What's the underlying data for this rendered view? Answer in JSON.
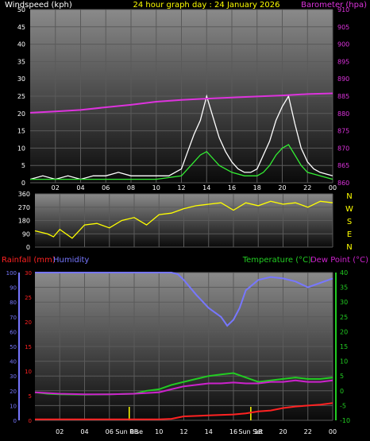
{
  "header": {
    "left_label": "Windspeed (kph)",
    "center_label": "24 hour graph day : 24 January 2026",
    "right_label": "Barometer (hpa)"
  },
  "colors": {
    "windspeed": "#ffffff",
    "wind_avg": "#33ee33",
    "barometer": "#dd33dd",
    "direction": "#ffff00",
    "rainfall": "#ff2222",
    "humidity": "#7777ff",
    "temperature": "#22cc22",
    "dewpoint": "#cc22cc",
    "title": "#ffff00"
  },
  "chart_data": [
    {
      "type": "line",
      "name": "wind-barometer",
      "x_ticks": [
        "02",
        "04",
        "06",
        "08",
        "10",
        "12",
        "14",
        "16",
        "18",
        "20",
        "22",
        "00"
      ],
      "y_left": {
        "label": "Windspeed (kph)",
        "range": [
          0,
          50
        ],
        "ticks": [
          0,
          5,
          10,
          15,
          20,
          25,
          30,
          35,
          40,
          45,
          50
        ]
      },
      "y_right": {
        "label": "Barometer (hpa)",
        "range": [
          860,
          910
        ],
        "ticks": [
          860,
          865,
          870,
          875,
          880,
          885,
          890,
          895,
          900,
          905,
          910
        ]
      },
      "series": [
        {
          "name": "Windspeed (kph)",
          "axis": "left",
          "x": [
            0,
            1,
            2,
            3,
            4,
            5,
            6,
            7,
            8,
            9,
            10,
            11,
            12,
            12.5,
            13,
            13.5,
            14,
            14.5,
            15,
            15.5,
            16,
            16.5,
            17,
            17.5,
            18,
            18.5,
            19,
            19.5,
            20,
            20.5,
            21,
            21.5,
            22,
            22.5,
            23,
            24
          ],
          "y": [
            1,
            2,
            1,
            2,
            1,
            2,
            2,
            3,
            2,
            2,
            2,
            2,
            4,
            9,
            14,
            18,
            25,
            19,
            13,
            9,
            6,
            4,
            3,
            3,
            4,
            8,
            12,
            18,
            22,
            25,
            17,
            10,
            6,
            4,
            3,
            2
          ]
        },
        {
          "name": "Wind average",
          "axis": "left",
          "x": [
            0,
            2,
            4,
            6,
            8,
            10,
            12,
            12.5,
            13,
            13.5,
            14,
            14.5,
            15,
            16,
            17,
            18,
            18.5,
            19,
            19.5,
            20,
            20.5,
            21,
            21.5,
            22,
            23,
            24
          ],
          "y": [
            1,
            1,
            1,
            1,
            1,
            1,
            2,
            4,
            6,
            8,
            9,
            7,
            5,
            3,
            2,
            2,
            3,
            5,
            8,
            10,
            11,
            8,
            5,
            3,
            2,
            1
          ]
        },
        {
          "name": "Barometer (hpa)",
          "axis": "right",
          "x": [
            0,
            2,
            4,
            6,
            8,
            10,
            12,
            14,
            16,
            18,
            20,
            22,
            24
          ],
          "y": [
            880.2,
            880.6,
            881.0,
            881.8,
            882.5,
            883.4,
            883.9,
            884.3,
            884.6,
            884.9,
            885.2,
            885.6,
            885.8
          ]
        }
      ]
    },
    {
      "type": "line",
      "name": "wind-direction",
      "y_range": [
        0,
        360
      ],
      "y_ticks": [
        0,
        90,
        180,
        270,
        360
      ],
      "compass": [
        "N",
        "W",
        "S",
        "E",
        "N"
      ],
      "series": [
        {
          "name": "Direction",
          "x": [
            0,
            1,
            1.5,
            2,
            3,
            4,
            5,
            6,
            7,
            8,
            9,
            10,
            11,
            12,
            13,
            14,
            15,
            16,
            17,
            18,
            19,
            20,
            21,
            22,
            23,
            24
          ],
          "y": [
            110,
            90,
            70,
            120,
            60,
            150,
            160,
            130,
            180,
            200,
            150,
            220,
            230,
            260,
            280,
            290,
            300,
            250,
            300,
            280,
            310,
            290,
            300,
            270,
            310,
            300
          ]
        }
      ]
    },
    {
      "type": "line",
      "name": "rain-humidity-temperature",
      "x_ticks": [
        "02",
        "04",
        "06",
        "08",
        "10",
        "12",
        "14",
        "16",
        "18",
        "20",
        "22",
        "00"
      ],
      "y_humidity": {
        "label": "Humidity",
        "range": [
          0,
          100
        ],
        "ticks": [
          0,
          10,
          20,
          30,
          40,
          50,
          60,
          70,
          80,
          90,
          100
        ]
      },
      "y_rain": {
        "label": "Rainfall (mm)",
        "range": [
          0,
          30
        ],
        "ticks": [
          0,
          5,
          10,
          15,
          20,
          25,
          30
        ]
      },
      "y_temp": {
        "label": "Temperature (°C)",
        "range": [
          -10,
          40
        ],
        "ticks": [
          -10,
          -5,
          0,
          5,
          10,
          15,
          20,
          25,
          30,
          35,
          40
        ]
      },
      "dewpoint_label": "Dew Point (°C)",
      "markers": [
        {
          "x": 7.6,
          "label": "Sun Rise"
        },
        {
          "x": 17.4,
          "label": "Sun Set"
        }
      ],
      "series": [
        {
          "name": "Humidity",
          "axis": "humidity",
          "x": [
            0,
            2,
            4,
            6,
            8,
            10,
            11,
            11.5,
            12,
            13,
            14,
            15,
            15.5,
            16,
            16.5,
            17,
            18,
            19,
            20,
            21,
            22,
            23,
            24
          ],
          "y": [
            100,
            100,
            100,
            100,
            100,
            100,
            100,
            99,
            95,
            85,
            76,
            70,
            64,
            68,
            76,
            88,
            95,
            97,
            96,
            94,
            90,
            93,
            96
          ]
        },
        {
          "name": "Rainfall (mm)",
          "axis": "rain",
          "x": [
            0,
            2,
            4,
            6,
            8,
            10,
            11,
            12,
            14,
            16,
            17,
            18,
            19,
            20,
            21,
            22,
            23,
            24
          ],
          "y": [
            0.2,
            0.2,
            0.2,
            0.2,
            0.2,
            0.2,
            0.3,
            0.8,
            1.0,
            1.2,
            1.4,
            1.8,
            2.0,
            2.5,
            2.8,
            3.0,
            3.2,
            3.5
          ]
        },
        {
          "name": "Temperature (°C)",
          "axis": "temp",
          "x": [
            0,
            1,
            2,
            4,
            6,
            8,
            9,
            10,
            11,
            12,
            13,
            14,
            15,
            16,
            17,
            18,
            19,
            20,
            21,
            22,
            23,
            24
          ],
          "y": [
            -0.5,
            -1,
            -1.2,
            -1.3,
            -1.2,
            -1,
            0,
            0.5,
            2,
            3,
            4,
            5,
            5.5,
            6,
            4.5,
            3,
            3.5,
            4,
            4.5,
            4,
            4,
            4.5
          ]
        },
        {
          "name": "Dew Point (°C)",
          "axis": "temp",
          "x": [
            0,
            2,
            4,
            6,
            8,
            10,
            11,
            12,
            13,
            14,
            15,
            16,
            17,
            18,
            19,
            20,
            21,
            22,
            23,
            24
          ],
          "y": [
            -0.5,
            -1,
            -1.2,
            -1.2,
            -1,
            -0.5,
            0.5,
            1.5,
            2,
            2.5,
            2.5,
            2.8,
            2.5,
            2.5,
            3,
            3,
            3.5,
            3,
            3,
            3.5
          ]
        }
      ]
    }
  ]
}
